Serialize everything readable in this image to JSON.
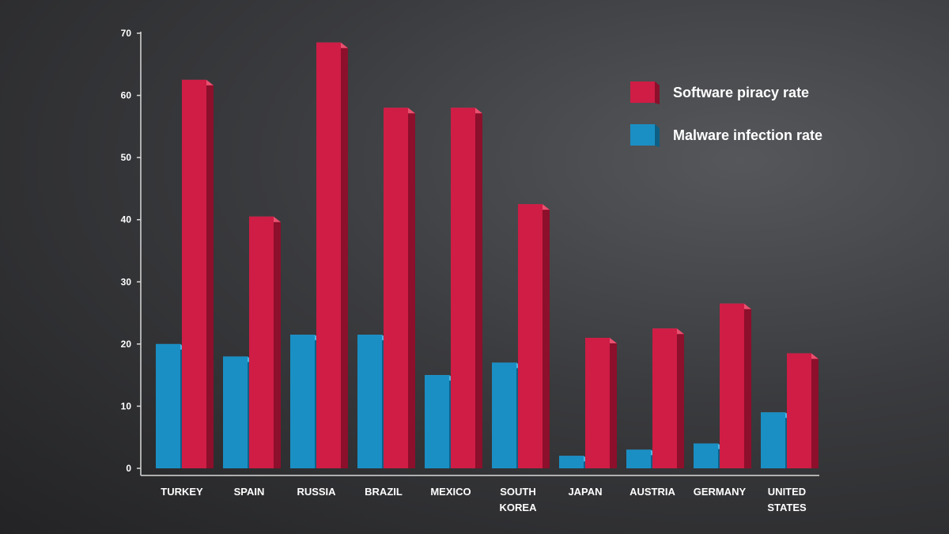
{
  "chart_data": {
    "type": "bar",
    "title": "",
    "xlabel": "",
    "ylabel": "",
    "ylim": [
      0,
      70
    ],
    "yticks": [
      0,
      10,
      20,
      30,
      40,
      50,
      60,
      70
    ],
    "grid": false,
    "legend_position": "top-right",
    "categories": [
      [
        "TURKEY"
      ],
      [
        "SPAIN"
      ],
      [
        "RUSSIA"
      ],
      [
        "BRAZIL"
      ],
      [
        "MEXICO"
      ],
      [
        "SOUTH",
        "KOREA"
      ],
      [
        "JAPAN"
      ],
      [
        "AUSTRIA"
      ],
      [
        "GERMANY"
      ],
      [
        "UNITED",
        "STATES"
      ]
    ],
    "series": [
      {
        "name": "Malware infection rate",
        "color": "#1a8fc4",
        "side_color": "#0e5f86",
        "top_color": "#4fb4e0",
        "values": [
          20,
          18,
          21.5,
          21.5,
          15,
          17,
          2,
          3,
          4,
          9
        ]
      },
      {
        "name": "Software piracy rate",
        "color": "#cf1d45",
        "side_color": "#8c0f2b",
        "top_color": "#e9506f",
        "values": [
          62.5,
          40.5,
          68.5,
          58,
          58,
          42.5,
          21,
          22.5,
          26.5,
          18.5
        ]
      }
    ]
  },
  "legend": {
    "items": [
      {
        "label": "Software piracy rate",
        "color": "#cf1d45",
        "side_color": "#8c0f2b",
        "top_color": "#e9506f"
      },
      {
        "label": "Malware infection rate",
        "color": "#1a8fc4",
        "side_color": "#0e5f86",
        "top_color": "#4fb4e0"
      }
    ]
  }
}
